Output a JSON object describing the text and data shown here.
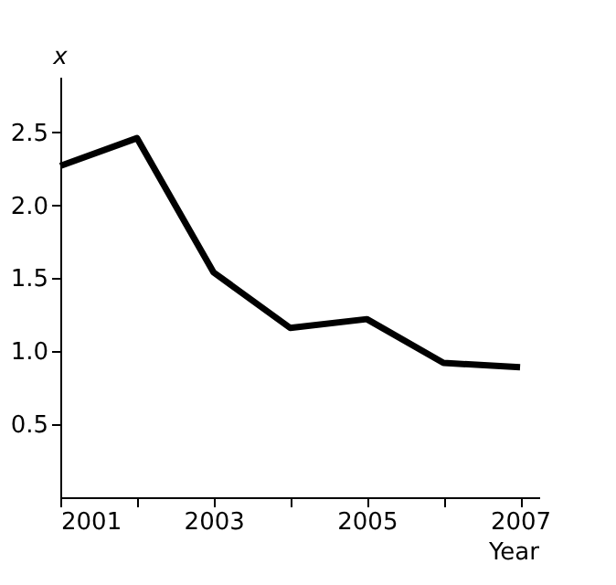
{
  "chart_data": {
    "type": "line",
    "xlabel": "Year",
    "ylabel": "x",
    "x": [
      2001,
      2002,
      2003,
      2004,
      2005,
      2006,
      2007
    ],
    "series": [
      {
        "color": "#000000",
        "values": [
          2.27,
          2.46,
          1.54,
          1.16,
          1.22,
          0.92,
          0.89
        ]
      }
    ],
    "xlim": [
      2001,
      2007.25
    ],
    "xticks": [
      2001,
      {
        "value": 2002,
        "label": null
      },
      2003,
      {
        "value": 2004,
        "label": null
      },
      2005,
      {
        "value": 2006,
        "label": null
      },
      2007
    ],
    "ylim": [
      0,
      2.88
    ],
    "yticks": [
      0.5,
      {
        "value": 1,
        "label": "1.0"
      },
      1.5,
      {
        "value": 2,
        "label": "2.0"
      },
      2.5
    ],
    "grid": false,
    "marker": "none",
    "line_style": "solid"
  }
}
